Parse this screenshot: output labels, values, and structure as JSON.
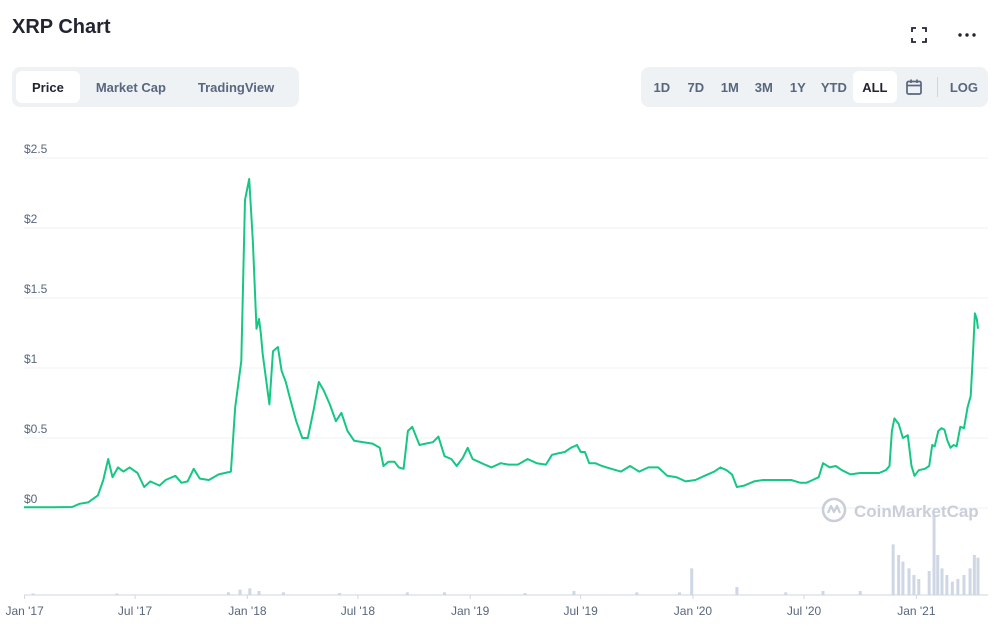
{
  "header": {
    "title": "XRP Chart",
    "fullscreen_icon": "expand-icon",
    "more_icon": "more-horizontal-icon"
  },
  "tabs": [
    {
      "label": "Price",
      "active": true
    },
    {
      "label": "Market Cap",
      "active": false
    },
    {
      "label": "TradingView",
      "active": false
    }
  ],
  "ranges": [
    {
      "label": "1D",
      "active": false
    },
    {
      "label": "7D",
      "active": false
    },
    {
      "label": "1M",
      "active": false
    },
    {
      "label": "3M",
      "active": false
    },
    {
      "label": "1Y",
      "active": false
    },
    {
      "label": "YTD",
      "active": false
    },
    {
      "label": "ALL",
      "active": true
    }
  ],
  "calendar_icon": "calendar-icon",
  "log_label": "LOG",
  "watermark": "CoinMarketCap",
  "colors": {
    "line": "#16c784",
    "volume": "#cfd6e4",
    "grid": "#eff2f5",
    "text": "#58667e"
  },
  "chart_data": {
    "type": "line",
    "ylim": [
      0,
      2.5
    ],
    "yticks": [
      {
        "value": 2.5,
        "label": "$2.5"
      },
      {
        "value": 2,
        "label": "$2"
      },
      {
        "value": 1.5,
        "label": "$1.5"
      },
      {
        "value": 1,
        "label": "$1"
      },
      {
        "value": 0.5,
        "label": "$0.5"
      },
      {
        "value": 0,
        "label": "$0"
      }
    ],
    "xticks": [
      {
        "date": "2017-01-01",
        "label": "Jan '17"
      },
      {
        "date": "2017-07-01",
        "label": "Jul '17"
      },
      {
        "date": "2018-01-01",
        "label": "Jan '18"
      },
      {
        "date": "2018-07-01",
        "label": "Jul '18"
      },
      {
        "date": "2019-01-01",
        "label": "Jan '19"
      },
      {
        "date": "2019-07-01",
        "label": "Jul '19"
      },
      {
        "date": "2020-01-01",
        "label": "Jan '20"
      },
      {
        "date": "2020-07-01",
        "label": "Jul '20"
      },
      {
        "date": "2021-01-01",
        "label": "Jan '21"
      }
    ],
    "x_range": [
      "2016-12-31",
      "2021-04-12"
    ],
    "grid": true,
    "series": [
      {
        "price": [
          [
            "2016-12-31",
            0.006
          ],
          [
            "2017-02-15",
            0.006
          ],
          [
            "2017-03-20",
            0.007
          ],
          [
            "2017-04-01",
            0.03
          ],
          [
            "2017-04-15",
            0.04
          ],
          [
            "2017-05-01",
            0.09
          ],
          [
            "2017-05-10",
            0.2
          ],
          [
            "2017-05-18",
            0.35
          ],
          [
            "2017-05-25",
            0.22
          ],
          [
            "2017-06-03",
            0.29
          ],
          [
            "2017-06-12",
            0.26
          ],
          [
            "2017-06-22",
            0.29
          ],
          [
            "2017-07-05",
            0.25
          ],
          [
            "2017-07-16",
            0.15
          ],
          [
            "2017-07-26",
            0.19
          ],
          [
            "2017-08-10",
            0.16
          ],
          [
            "2017-08-20",
            0.2
          ],
          [
            "2017-09-05",
            0.23
          ],
          [
            "2017-09-15",
            0.18
          ],
          [
            "2017-09-25",
            0.19
          ],
          [
            "2017-10-05",
            0.28
          ],
          [
            "2017-10-15",
            0.21
          ],
          [
            "2017-10-30",
            0.2
          ],
          [
            "2017-11-15",
            0.24
          ],
          [
            "2017-12-05",
            0.26
          ],
          [
            "2017-12-12",
            0.72
          ],
          [
            "2017-12-22",
            1.05
          ],
          [
            "2017-12-28",
            2.2
          ],
          [
            "2018-01-04",
            2.35
          ],
          [
            "2018-01-10",
            1.9
          ],
          [
            "2018-01-16",
            1.28
          ],
          [
            "2018-01-20",
            1.35
          ],
          [
            "2018-01-23",
            1.25
          ],
          [
            "2018-01-26",
            1.1
          ],
          [
            "2018-02-06",
            0.74
          ],
          [
            "2018-02-12",
            1.12
          ],
          [
            "2018-02-20",
            1.15
          ],
          [
            "2018-02-26",
            0.98
          ],
          [
            "2018-03-05",
            0.9
          ],
          [
            "2018-03-12",
            0.78
          ],
          [
            "2018-03-22",
            0.62
          ],
          [
            "2018-04-01",
            0.5
          ],
          [
            "2018-04-10",
            0.5
          ],
          [
            "2018-04-20",
            0.71
          ],
          [
            "2018-04-28",
            0.9
          ],
          [
            "2018-05-06",
            0.84
          ],
          [
            "2018-05-16",
            0.74
          ],
          [
            "2018-05-26",
            0.62
          ],
          [
            "2018-06-04",
            0.68
          ],
          [
            "2018-06-14",
            0.55
          ],
          [
            "2018-06-25",
            0.48
          ],
          [
            "2018-07-10",
            0.47
          ],
          [
            "2018-07-25",
            0.46
          ],
          [
            "2018-08-06",
            0.43
          ],
          [
            "2018-08-12",
            0.3
          ],
          [
            "2018-08-20",
            0.33
          ],
          [
            "2018-08-30",
            0.33
          ],
          [
            "2018-09-06",
            0.29
          ],
          [
            "2018-09-14",
            0.28
          ],
          [
            "2018-09-21",
            0.55
          ],
          [
            "2018-09-28",
            0.58
          ],
          [
            "2018-10-10",
            0.45
          ],
          [
            "2018-10-20",
            0.46
          ],
          [
            "2018-11-01",
            0.47
          ],
          [
            "2018-11-10",
            0.51
          ],
          [
            "2018-11-20",
            0.37
          ],
          [
            "2018-12-01",
            0.35
          ],
          [
            "2018-12-10",
            0.3
          ],
          [
            "2018-12-20",
            0.36
          ],
          [
            "2018-12-28",
            0.43
          ],
          [
            "2019-01-05",
            0.35
          ],
          [
            "2019-01-15",
            0.33
          ],
          [
            "2019-01-25",
            0.31
          ],
          [
            "2019-02-05",
            0.29
          ],
          [
            "2019-02-20",
            0.32
          ],
          [
            "2019-03-05",
            0.31
          ],
          [
            "2019-03-20",
            0.31
          ],
          [
            "2019-04-05",
            0.35
          ],
          [
            "2019-04-20",
            0.32
          ],
          [
            "2019-05-05",
            0.31
          ],
          [
            "2019-05-15",
            0.38
          ],
          [
            "2019-05-25",
            0.39
          ],
          [
            "2019-06-05",
            0.4
          ],
          [
            "2019-06-15",
            0.43
          ],
          [
            "2019-06-25",
            0.45
          ],
          [
            "2019-07-01",
            0.4
          ],
          [
            "2019-07-08",
            0.4
          ],
          [
            "2019-07-15",
            0.32
          ],
          [
            "2019-07-25",
            0.32
          ],
          [
            "2019-08-05",
            0.3
          ],
          [
            "2019-08-20",
            0.28
          ],
          [
            "2019-09-05",
            0.26
          ],
          [
            "2019-09-20",
            0.3
          ],
          [
            "2019-10-05",
            0.26
          ],
          [
            "2019-10-20",
            0.29
          ],
          [
            "2019-11-05",
            0.29
          ],
          [
            "2019-11-20",
            0.23
          ],
          [
            "2019-12-05",
            0.22
          ],
          [
            "2019-12-20",
            0.19
          ],
          [
            "2020-01-05",
            0.2
          ],
          [
            "2020-01-20",
            0.23
          ],
          [
            "2020-02-05",
            0.26
          ],
          [
            "2020-02-15",
            0.29
          ],
          [
            "2020-02-25",
            0.27
          ],
          [
            "2020-03-05",
            0.24
          ],
          [
            "2020-03-13",
            0.15
          ],
          [
            "2020-03-25",
            0.16
          ],
          [
            "2020-04-10",
            0.19
          ],
          [
            "2020-04-25",
            0.2
          ],
          [
            "2020-05-10",
            0.2
          ],
          [
            "2020-05-25",
            0.2
          ],
          [
            "2020-06-10",
            0.2
          ],
          [
            "2020-06-25",
            0.18
          ],
          [
            "2020-07-05",
            0.18
          ],
          [
            "2020-07-15",
            0.2
          ],
          [
            "2020-07-25",
            0.22
          ],
          [
            "2020-08-01",
            0.32
          ],
          [
            "2020-08-12",
            0.29
          ],
          [
            "2020-08-22",
            0.3
          ],
          [
            "2020-09-01",
            0.27
          ],
          [
            "2020-09-15",
            0.24
          ],
          [
            "2020-10-01",
            0.25
          ],
          [
            "2020-10-15",
            0.25
          ],
          [
            "2020-11-01",
            0.25
          ],
          [
            "2020-11-12",
            0.27
          ],
          [
            "2020-11-18",
            0.3
          ],
          [
            "2020-11-22",
            0.55
          ],
          [
            "2020-11-26",
            0.64
          ],
          [
            "2020-12-03",
            0.6
          ],
          [
            "2020-12-10",
            0.5
          ],
          [
            "2020-12-18",
            0.52
          ],
          [
            "2020-12-24",
            0.3
          ],
          [
            "2020-12-29",
            0.23
          ],
          [
            "2021-01-05",
            0.27
          ],
          [
            "2021-01-15",
            0.28
          ],
          [
            "2021-01-22",
            0.3
          ],
          [
            "2021-01-27",
            0.45
          ],
          [
            "2021-01-31",
            0.44
          ],
          [
            "2021-02-06",
            0.55
          ],
          [
            "2021-02-11",
            0.57
          ],
          [
            "2021-02-16",
            0.56
          ],
          [
            "2021-02-21",
            0.48
          ],
          [
            "2021-02-26",
            0.43
          ],
          [
            "2021-03-03",
            0.45
          ],
          [
            "2021-03-08",
            0.44
          ],
          [
            "2021-03-14",
            0.58
          ],
          [
            "2021-03-20",
            0.57
          ],
          [
            "2021-03-26",
            0.72
          ],
          [
            "2021-03-31",
            0.8
          ],
          [
            "2021-04-04",
            1.12
          ],
          [
            "2021-04-07",
            1.39
          ],
          [
            "2021-04-10",
            1.35
          ],
          [
            "2021-04-12",
            1.28
          ]
        ]
      }
    ],
    "volume": [
      [
        "2017-01-15",
        0.5
      ],
      [
        "2017-06-01",
        1
      ],
      [
        "2017-12-01",
        2
      ],
      [
        "2017-12-20",
        4
      ],
      [
        "2018-01-05",
        5
      ],
      [
        "2018-01-20",
        3
      ],
      [
        "2018-03-01",
        2
      ],
      [
        "2018-06-01",
        1.5
      ],
      [
        "2018-09-20",
        2
      ],
      [
        "2018-11-20",
        2
      ],
      [
        "2019-04-01",
        1.5
      ],
      [
        "2019-06-20",
        3
      ],
      [
        "2019-10-01",
        2
      ],
      [
        "2019-12-10",
        2
      ],
      [
        "2019-12-30",
        20
      ],
      [
        "2020-03-13",
        6
      ],
      [
        "2020-06-01",
        2
      ],
      [
        "2020-08-01",
        3
      ],
      [
        "2020-10-01",
        3
      ],
      [
        "2020-11-24",
        38
      ],
      [
        "2020-12-03",
        30
      ],
      [
        "2020-12-10",
        25
      ],
      [
        "2020-12-20",
        20
      ],
      [
        "2020-12-28",
        15
      ],
      [
        "2021-01-05",
        12
      ],
      [
        "2021-01-22",
        18
      ],
      [
        "2021-01-30",
        60
      ],
      [
        "2021-02-05",
        30
      ],
      [
        "2021-02-12",
        20
      ],
      [
        "2021-02-20",
        15
      ],
      [
        "2021-03-01",
        10
      ],
      [
        "2021-03-10",
        12
      ],
      [
        "2021-03-20",
        15
      ],
      [
        "2021-03-30",
        20
      ],
      [
        "2021-04-06",
        30
      ],
      [
        "2021-04-12",
        28
      ]
    ]
  }
}
